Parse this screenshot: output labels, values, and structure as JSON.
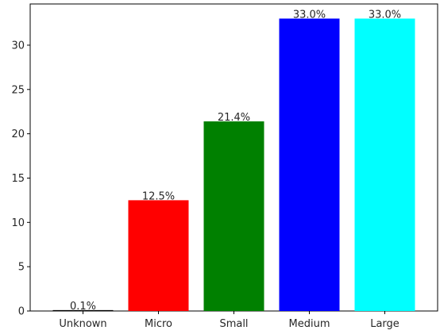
{
  "chart_data": {
    "type": "bar",
    "title": "",
    "xlabel": "",
    "ylabel": "",
    "categories": [
      "Unknown",
      "Micro",
      "Small",
      "Medium",
      "Large"
    ],
    "values": [
      0.1,
      12.5,
      21.4,
      33.0,
      33.0
    ],
    "data_labels": [
      "0.1%",
      "12.5%",
      "21.4%",
      "33.0%",
      "33.0%"
    ],
    "colors": [
      "#000000",
      "#ff0000",
      "#008000",
      "#0000ff",
      "#00ffff"
    ],
    "ylim": [
      0,
      34.65
    ],
    "yticks": [
      0,
      5,
      10,
      15,
      20,
      25,
      30
    ],
    "grid": false,
    "legend": null
  }
}
